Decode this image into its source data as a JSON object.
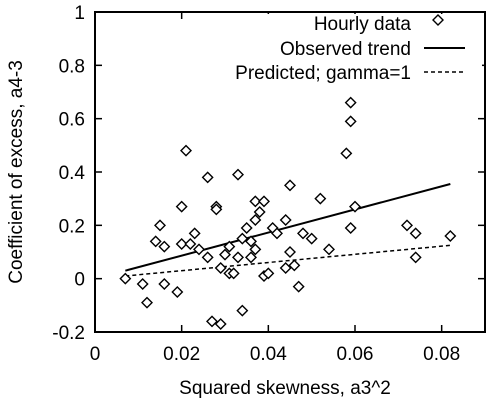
{
  "chart_data": {
    "type": "scatter",
    "title": "",
    "xlabel": "Squared skewness, a3^2",
    "ylabel": "Coefficient of excess, a4-3",
    "xlim": [
      0,
      0.09
    ],
    "ylim": [
      -0.2,
      1.0
    ],
    "x_ticks": [
      0,
      0.02,
      0.04,
      0.06,
      0.08
    ],
    "x_tick_labels": [
      "0",
      "0.02",
      "0.04",
      "0.06",
      "0.08"
    ],
    "y_ticks": [
      -0.2,
      0,
      0.2,
      0.4,
      0.6,
      0.8,
      1
    ],
    "y_tick_labels": [
      "-0.2",
      "0",
      "0.2",
      "0.4",
      "0.6",
      "0.8",
      "1"
    ],
    "grid": false,
    "legend_position": "top-right",
    "series": [
      {
        "name": "Hourly data",
        "kind": "scatter",
        "marker": "diamond",
        "points": [
          [
            0.007,
            0.0
          ],
          [
            0.011,
            -0.02
          ],
          [
            0.012,
            -0.09
          ],
          [
            0.014,
            0.14
          ],
          [
            0.015,
            0.2
          ],
          [
            0.016,
            0.12
          ],
          [
            0.016,
            -0.02
          ],
          [
            0.019,
            -0.05
          ],
          [
            0.02,
            0.13
          ],
          [
            0.02,
            0.27
          ],
          [
            0.021,
            0.48
          ],
          [
            0.022,
            0.13
          ],
          [
            0.023,
            0.17
          ],
          [
            0.024,
            0.11
          ],
          [
            0.026,
            0.08
          ],
          [
            0.026,
            0.38
          ],
          [
            0.027,
            -0.16
          ],
          [
            0.028,
            0.27
          ],
          [
            0.028,
            0.26
          ],
          [
            0.029,
            0.04
          ],
          [
            0.029,
            -0.17
          ],
          [
            0.03,
            0.09
          ],
          [
            0.031,
            0.02
          ],
          [
            0.031,
            0.12
          ],
          [
            0.032,
            0.02
          ],
          [
            0.033,
            0.08
          ],
          [
            0.033,
            0.39
          ],
          [
            0.034,
            -0.12
          ],
          [
            0.034,
            0.15
          ],
          [
            0.035,
            0.19
          ],
          [
            0.036,
            0.14
          ],
          [
            0.036,
            0.08
          ],
          [
            0.037,
            0.11
          ],
          [
            0.037,
            0.22
          ],
          [
            0.037,
            0.29
          ],
          [
            0.038,
            0.25
          ],
          [
            0.039,
            0.29
          ],
          [
            0.039,
            0.01
          ],
          [
            0.04,
            0.02
          ],
          [
            0.041,
            0.19
          ],
          [
            0.042,
            0.17
          ],
          [
            0.044,
            0.04
          ],
          [
            0.044,
            0.22
          ],
          [
            0.045,
            0.1
          ],
          [
            0.045,
            0.35
          ],
          [
            0.046,
            0.05
          ],
          [
            0.047,
            -0.03
          ],
          [
            0.048,
            0.17
          ],
          [
            0.05,
            0.15
          ],
          [
            0.052,
            0.3
          ],
          [
            0.054,
            0.11
          ],
          [
            0.058,
            0.47
          ],
          [
            0.059,
            0.59
          ],
          [
            0.059,
            0.66
          ],
          [
            0.059,
            0.19
          ],
          [
            0.06,
            0.27
          ],
          [
            0.072,
            0.2
          ],
          [
            0.074,
            0.17
          ],
          [
            0.074,
            0.08
          ],
          [
            0.082,
            0.16
          ]
        ]
      },
      {
        "name": "Observed trend",
        "kind": "line",
        "dash": "solid",
        "points": [
          [
            0.007,
            0.03
          ],
          [
            0.082,
            0.355
          ]
        ]
      },
      {
        "name": "Predicted; gamma=1",
        "kind": "line",
        "dash": "dashed",
        "points": [
          [
            0.007,
            0.01
          ],
          [
            0.082,
            0.125
          ]
        ]
      }
    ]
  }
}
